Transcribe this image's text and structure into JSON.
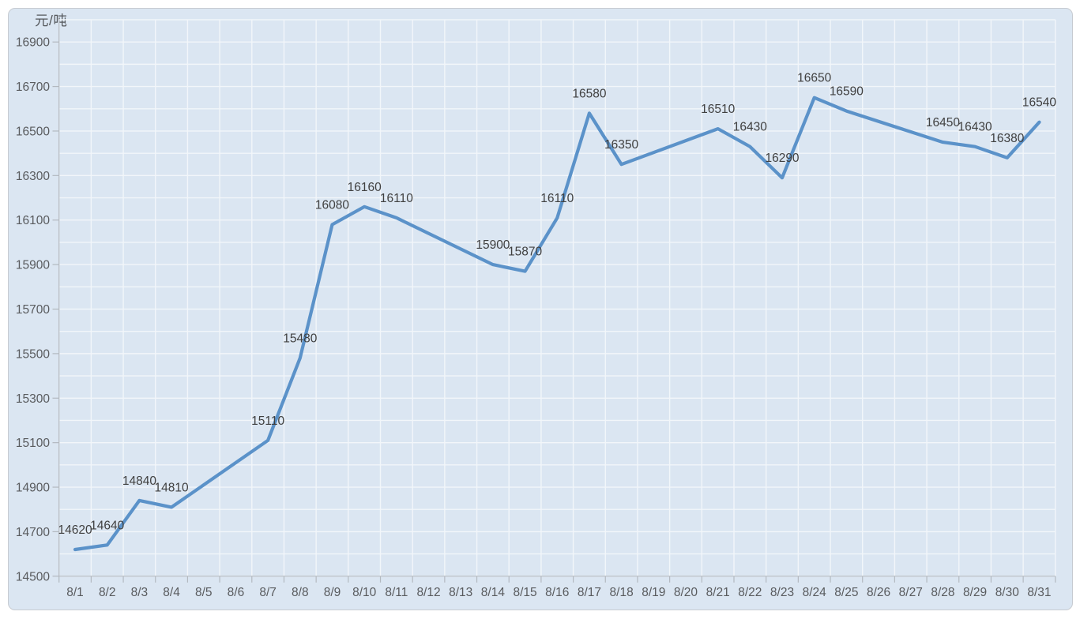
{
  "chart_data": {
    "type": "line",
    "title": "",
    "ylabel": "元/吨",
    "xlabel": "",
    "categories": [
      "8/1",
      "8/2",
      "8/3",
      "8/4",
      "8/5",
      "8/6",
      "8/7",
      "8/8",
      "8/9",
      "8/10",
      "8/11",
      "8/12",
      "8/13",
      "8/14",
      "8/15",
      "8/16",
      "8/17",
      "8/18",
      "8/19",
      "8/20",
      "8/21",
      "8/22",
      "8/23",
      "8/24",
      "8/25",
      "8/26",
      "8/27",
      "8/28",
      "8/29",
      "8/30",
      "8/31"
    ],
    "series": [
      {
        "points": [
          {
            "date": "8/1",
            "value": 14620
          },
          {
            "date": "8/2",
            "value": 14640
          },
          {
            "date": "8/3",
            "value": 14840
          },
          {
            "date": "8/4",
            "value": 14810
          },
          {
            "date": "8/7",
            "value": 15110
          },
          {
            "date": "8/8",
            "value": 15480
          },
          {
            "date": "8/9",
            "value": 16080
          },
          {
            "date": "8/10",
            "value": 16160
          },
          {
            "date": "8/11",
            "value": 16110
          },
          {
            "date": "8/14",
            "value": 15900
          },
          {
            "date": "8/15",
            "value": 15870
          },
          {
            "date": "8/16",
            "value": 16110
          },
          {
            "date": "8/17",
            "value": 16580
          },
          {
            "date": "8/18",
            "value": 16350
          },
          {
            "date": "8/21",
            "value": 16510
          },
          {
            "date": "8/22",
            "value": 16430
          },
          {
            "date": "8/23",
            "value": 16290
          },
          {
            "date": "8/24",
            "value": 16650
          },
          {
            "date": "8/25",
            "value": 16590
          },
          {
            "date": "8/28",
            "value": 16450
          },
          {
            "date": "8/29",
            "value": 16430
          },
          {
            "date": "8/30",
            "value": 16380
          },
          {
            "date": "8/31",
            "value": 16540
          }
        ]
      }
    ],
    "data_labels_visible": true,
    "legend": "none",
    "grid": true,
    "ylim": [
      14500,
      17000
    ],
    "ytick_major": 200,
    "ytick_minor": 100,
    "ytick_labels": [
      "14500",
      "14700",
      "14900",
      "15100",
      "15300",
      "15500",
      "15700",
      "15900",
      "16100",
      "16300",
      "16500",
      "16700",
      "16900"
    ]
  },
  "colors": {
    "page_background": "#ffffff",
    "chart_background": "#dbe6f2",
    "chart_border": "#c7cbd1",
    "gridline": "#f2f6fa",
    "axis_line": "#b3b9c0",
    "line": "#5b92c9",
    "data_label_text": "#404040",
    "axis_tick_text": "#595b5e"
  }
}
